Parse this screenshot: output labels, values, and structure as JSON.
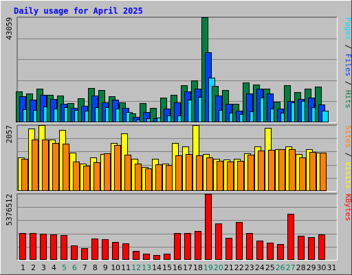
{
  "chart_data": {
    "type": "bar",
    "title": "Daily usage for April 2025",
    "categories": [
      "1",
      "2",
      "3",
      "4",
      "5",
      "6",
      "7",
      "8",
      "9",
      "10",
      "11",
      "12",
      "13",
      "14",
      "15",
      "16",
      "17",
      "18",
      "19",
      "20",
      "21",
      "22",
      "23",
      "24",
      "25",
      "26",
      "27",
      "28",
      "29",
      "30",
      "31"
    ],
    "weekend_days": [
      "5",
      "6",
      "12",
      "13",
      "19",
      "20",
      "26",
      "27"
    ],
    "panels": [
      {
        "id": "hits-files-pages",
        "max_label": "43059",
        "ymax": 43059,
        "series": [
          {
            "name": "Hits",
            "color": "#008040",
            "values": [
              12600,
              11800,
              13700,
              11200,
              11000,
              7800,
              9800,
              14100,
              13300,
              10600,
              8300,
              3600,
              7900,
              6000,
              10000,
              11300,
              15200,
              17200,
              43059,
              15000,
              13100,
              7600,
              16300,
              15600,
              13900,
              8400,
              15300,
              12400,
              13800,
              14600,
              0
            ]
          },
          {
            "name": "Files",
            "color": "#0040ff",
            "values": [
              10600,
              9400,
              11200,
              9700,
              7700,
              5800,
              6800,
              10900,
              8100,
              9300,
              5800,
              2300,
              4300,
              1800,
              5500,
              8200,
              12700,
              13900,
              28600,
              11100,
              7600,
              4800,
              11800,
              13900,
              11700,
              5700,
              8700,
              9700,
              10000,
              7400,
              0
            ]
          },
          {
            "name": "Pages",
            "color": "#00e0ff",
            "values": [
              5400,
              5200,
              6500,
              5600,
              6200,
              5000,
              4900,
              6100,
              6300,
              5500,
              4200,
              1200,
              1800,
              2000,
              2900,
              2800,
              9400,
              10400,
              18200,
              5100,
              3800,
              3500,
              4600,
              10100,
              5700,
              4000,
              8100,
              8800,
              6100,
              4700,
              0
            ]
          }
        ]
      },
      {
        "id": "visits-sites",
        "max_label": "2057",
        "ymax": 2057,
        "series": [
          {
            "name": "Visits",
            "color": "#ffff00",
            "values": [
              1050,
              1950,
              2057,
              1600,
              1900,
              1200,
              850,
              1050,
              1150,
              1500,
              1800,
              1010,
              750,
              1000,
              850,
              1500,
              1400,
              2057,
              1150,
              1000,
              980,
              1000,
              1180,
              1400,
              1980,
              1300,
              1400,
              1160,
              1300,
              1200,
              0
            ]
          },
          {
            "name": "Sites",
            "color": "#ff8000",
            "values": [
              1000,
              1600,
              1600,
              1510,
              1470,
              930,
              800,
              900,
              1170,
              1440,
              1140,
              860,
              700,
              830,
              810,
              1120,
              1150,
              1110,
              1050,
              950,
              920,
              950,
              1140,
              1260,
              1290,
              1310,
              1300,
              1060,
              1230,
              1190,
              0
            ]
          }
        ]
      },
      {
        "id": "kbytes",
        "max_label": "5376512",
        "ymax": 5376512,
        "series": [
          {
            "name": "KBytes",
            "color": "#ff0000",
            "values": [
              2210000,
              2170000,
              2110000,
              2050000,
              2010000,
              1170000,
              980000,
              1720000,
              1700000,
              1470000,
              1330000,
              750000,
              530000,
              380000,
              500000,
              2200000,
              2200000,
              2330000,
              5376512,
              2950000,
              1770000,
              3060000,
              2200000,
              1570000,
              1400000,
              1290000,
              3770000,
              1940000,
              1840000,
              2070000,
              0
            ]
          }
        ]
      }
    ]
  }
}
